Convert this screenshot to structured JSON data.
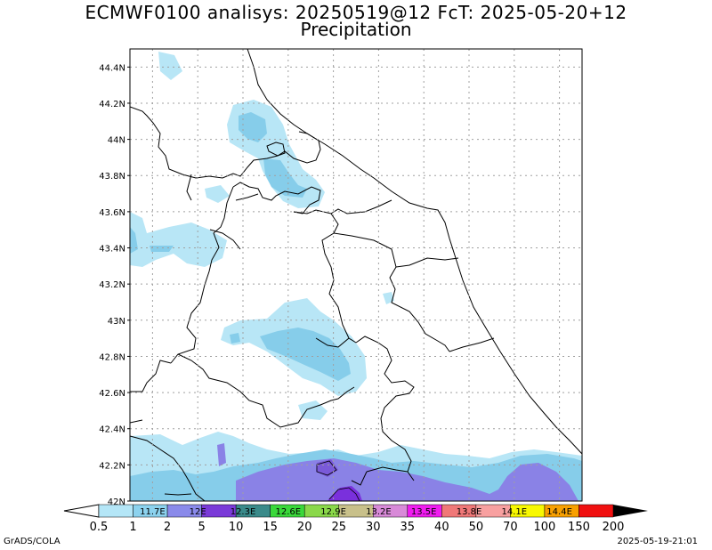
{
  "title": "ECMWF0100 analisys: 20250519@12 FcT: 2025-05-20+12",
  "subtitle": "Precipitation",
  "footer_left": "GrADS/COLA",
  "footer_right": "2025-05-19-21:01",
  "chart_data": {
    "type": "heatmap",
    "title": "ECMWF0100 analisys: 20250519@12 FcT: 2025-05-20+12",
    "subtitle": "Precipitation",
    "xlabel": "",
    "ylabel": "",
    "xlim": [
      11.55,
      14.55
    ],
    "ylim": [
      42.0,
      44.5
    ],
    "grid": true,
    "lat_ticks": [
      "44.4N",
      "44.2N",
      "44N",
      "43.8N",
      "43.6N",
      "43.4N",
      "43.2N",
      "43N",
      "42.8N",
      "42.6N",
      "42.4N",
      "42.2N",
      "42N"
    ],
    "lat_values": [
      44.4,
      44.2,
      44.0,
      43.8,
      43.6,
      43.4,
      43.2,
      43.0,
      42.8,
      42.6,
      42.4,
      42.2,
      42.0
    ],
    "lon_ticks": [
      "11.7E",
      "12E",
      "12.3E",
      "12.6E",
      "12.9E",
      "13.2E",
      "13.5E",
      "13.8E",
      "14.1E",
      "14.4E"
    ],
    "lon_values": [
      11.7,
      12.0,
      12.3,
      12.6,
      12.9,
      13.2,
      13.5,
      13.8,
      14.1,
      14.4
    ],
    "colorbar": {
      "levels": [
        "0.5",
        "1",
        "2",
        "5",
        "10",
        "15",
        "20",
        "25",
        "30",
        "35",
        "40",
        "50",
        "70",
        "100",
        "150",
        "200"
      ],
      "colors": [
        "#b4e6f7",
        "#8cd2ee",
        "#8a8aea",
        "#7a3ad8",
        "#3a8a8a",
        "#3ad83a",
        "#8ad84a",
        "#c8c08a",
        "#d88ad8",
        "#f01cf0",
        "#f07878",
        "#f8a0a0",
        "#f8f800",
        "#f8a000",
        "#f01010",
        "#b00000"
      ]
    },
    "regions": [
      {
        "level": "0.5",
        "color": "#b4e6f7"
      },
      {
        "level": "1",
        "color": "#8cd2ee"
      },
      {
        "level": "2",
        "color": "#8a8aea"
      },
      {
        "level": "5",
        "color": "#7a3ad8"
      }
    ]
  }
}
